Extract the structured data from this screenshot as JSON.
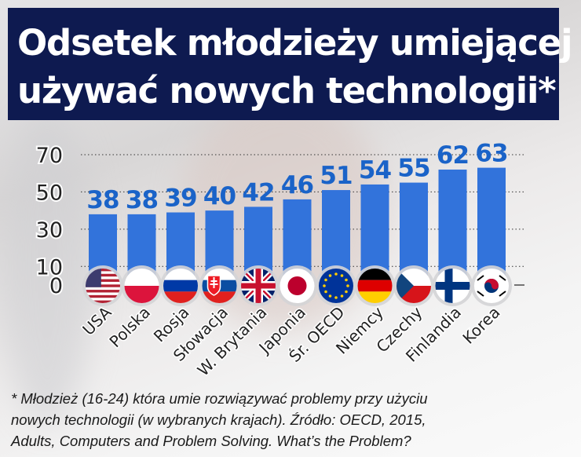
{
  "title_lines": [
    "Odsetek młodzieży umiejącej",
    "używać nowych technologii*"
  ],
  "chart_data": {
    "type": "bar",
    "title": "Odsetek młodzieży umiejącej używać nowych technologii*",
    "categories": [
      "USA",
      "Polska",
      "Rosja",
      "Słowacja",
      "W. Brytania",
      "Japonia",
      "Śr. OECD",
      "Niemcy",
      "Czechy",
      "Finlandia",
      "Korea"
    ],
    "values": [
      38,
      38,
      39,
      40,
      42,
      46,
      51,
      54,
      55,
      62,
      63
    ],
    "flags": [
      "us",
      "pl",
      "ru",
      "sk",
      "gb",
      "jp",
      "eu",
      "de",
      "cz",
      "fi",
      "kr"
    ],
    "yticks": [
      0,
      10,
      30,
      50,
      70
    ],
    "ylim": [
      0,
      70
    ],
    "grid": true,
    "bar_color": "#3273db",
    "label_color": "#1a63c8"
  },
  "footnote_lines": [
    "* Młodzież (16-24) która umie rozwiązywać problemy przy użyciu",
    "nowych technologii (w wybranych krajach). Źródło: OECD, 2015,",
    "Adults, Computers and Problem Solving. What’s the Problem?"
  ]
}
